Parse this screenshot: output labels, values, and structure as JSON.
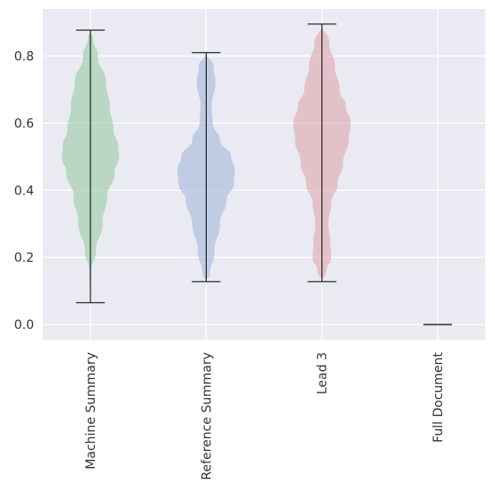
{
  "chart_data": {
    "type": "violin",
    "categories": [
      "Machine Summary",
      "Reference Summary",
      "Lead 3",
      "Full Document"
    ],
    "ylim": [
      -0.045,
      0.94
    ],
    "yticks": [
      0.0,
      0.2,
      0.4,
      0.6,
      0.8
    ],
    "ytick_labels": [
      "0.0",
      "0.2",
      "0.4",
      "0.6",
      "0.8"
    ],
    "grid": true,
    "background": "#eaeaf2",
    "whisker_color": "#000000",
    "violins": [
      {
        "color": "#8fc79a",
        "min": 0.065,
        "max": 0.877,
        "density": [
          [
            0.065,
            0
          ],
          [
            0.16,
            0.01
          ],
          [
            0.22,
            0.06
          ],
          [
            0.3,
            0.13
          ],
          [
            0.38,
            0.18
          ],
          [
            0.45,
            0.26
          ],
          [
            0.5,
            0.31
          ],
          [
            0.53,
            0.3
          ],
          [
            0.58,
            0.25
          ],
          [
            0.65,
            0.21
          ],
          [
            0.72,
            0.17
          ],
          [
            0.8,
            0.08
          ],
          [
            0.85,
            0.03
          ],
          [
            0.877,
            0
          ]
        ]
      },
      {
        "color": "#9cb0d9",
        "min": 0.128,
        "max": 0.81,
        "density": [
          [
            0.128,
            0
          ],
          [
            0.15,
            0.04
          ],
          [
            0.22,
            0.09
          ],
          [
            0.3,
            0.15
          ],
          [
            0.37,
            0.22
          ],
          [
            0.42,
            0.3
          ],
          [
            0.46,
            0.31
          ],
          [
            0.5,
            0.27
          ],
          [
            0.55,
            0.15
          ],
          [
            0.6,
            0.07
          ],
          [
            0.65,
            0.06
          ],
          [
            0.72,
            0.1
          ],
          [
            0.77,
            0.08
          ],
          [
            0.81,
            0
          ]
        ]
      },
      {
        "color": "#dd9fa8",
        "min": 0.128,
        "max": 0.895,
        "density": [
          [
            0.128,
            0
          ],
          [
            0.16,
            0.05
          ],
          [
            0.2,
            0.1
          ],
          [
            0.25,
            0.09
          ],
          [
            0.3,
            0.07
          ],
          [
            0.36,
            0.1
          ],
          [
            0.42,
            0.17
          ],
          [
            0.48,
            0.23
          ],
          [
            0.55,
            0.29
          ],
          [
            0.6,
            0.31
          ],
          [
            0.65,
            0.26
          ],
          [
            0.7,
            0.19
          ],
          [
            0.77,
            0.14
          ],
          [
            0.84,
            0.08
          ],
          [
            0.895,
            0
          ]
        ]
      },
      {
        "color": "#e6b98c",
        "min": 0.0,
        "max": 0.0,
        "density": []
      }
    ]
  }
}
